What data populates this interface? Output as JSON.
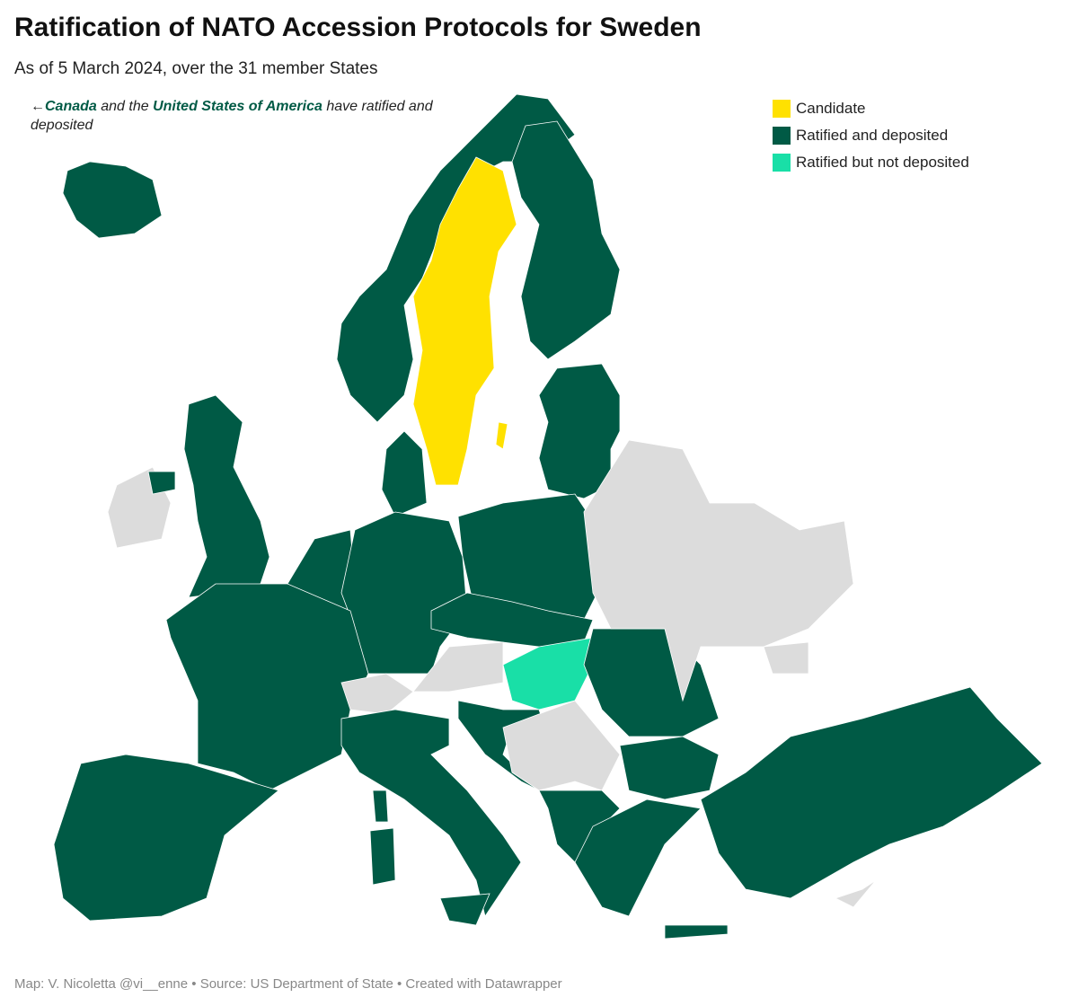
{
  "header": {
    "title": "Ratification of NATO Accession Protocols for Sweden",
    "subtitle": "As of 5 March 2024, over the 31 member States"
  },
  "annotation": {
    "arrow": "←",
    "first": "Canada",
    "middle": " and the ",
    "second": "United States of America",
    "end": " have ratified and deposited"
  },
  "legend": {
    "items": [
      {
        "label": "Candidate",
        "color": "#ffe100"
      },
      {
        "label": "Ratified and deposited",
        "color": "#005a45"
      },
      {
        "label": "Ratified but not deposited",
        "color": "#19dfa7"
      }
    ]
  },
  "footer": {
    "text": "Map: V. Nicoletta @vi__enne • Source: US Department of State • Created with Datawrapper"
  }
}
